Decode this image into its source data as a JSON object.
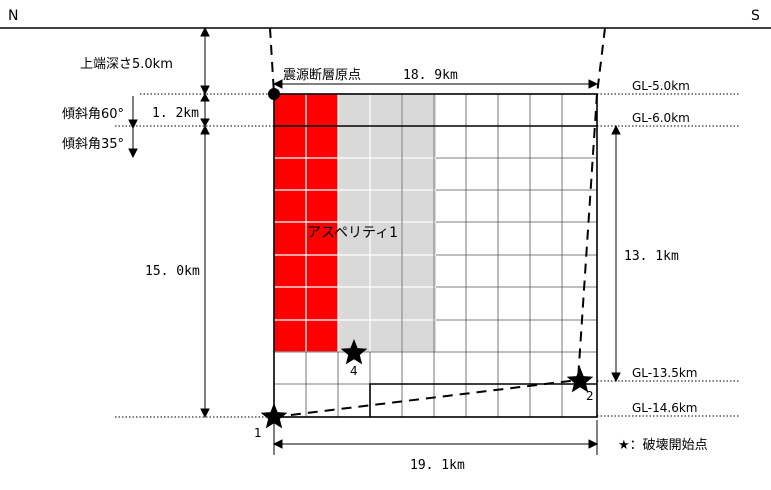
{
  "orientation": {
    "left": "N",
    "right": "S"
  },
  "top_depth_label": "上端深さ5.0km",
  "dip_60_label": "傾斜角60°",
  "dip_35_label": "傾斜角35°",
  "origin_label": "震源断層原点",
  "dim_1_2": "1. 2km",
  "dim_15_0": "15. 0km",
  "dim_top_length": "18. 9km",
  "dim_13_1": "13. 1km",
  "dim_bottom_length": "19. 1km",
  "asperity_label": "アスペリティ1",
  "gl_labels": {
    "gl_5_0": "GL-5.0km",
    "gl_6_0": "GL-6.0km",
    "gl_13_5": "GL-13.5km",
    "gl_14_6": "GL-14.6km"
  },
  "rupture_points": [
    "1",
    "2",
    "4"
  ],
  "legend": "★：破壊開始点",
  "colors": {
    "asperity_strong": "#ff0000",
    "asperity_back": "#d9d9d9",
    "lines": "#000000",
    "background": "#ffffff"
  }
}
